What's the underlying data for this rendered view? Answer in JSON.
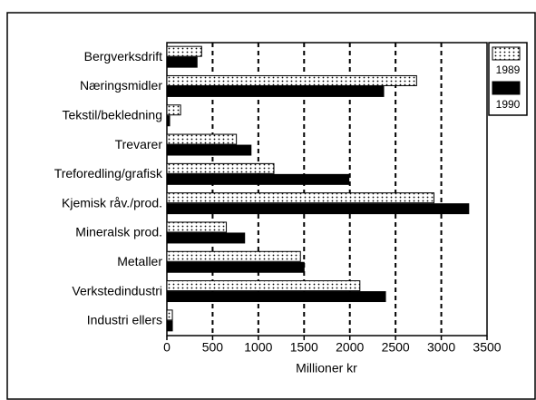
{
  "chart_data": {
    "type": "barh",
    "x_label": "Millioner kr",
    "categories": [
      "Bergverksdrift",
      "Næringsmidler",
      "Tekstil/bekledning",
      "Trevarer",
      "Treforedling/grafisk",
      "Kjemisk råv./prod.",
      "Mineralsk prod.",
      "Metaller",
      "Verkstedindustri",
      "Industri ellers"
    ],
    "series": [
      {
        "name": "1989",
        "color": "#ffffff",
        "values": [
          380,
          2730,
          150,
          760,
          1170,
          2920,
          650,
          1460,
          2110,
          60
        ]
      },
      {
        "name": "1990",
        "color": "#000000",
        "values": [
          330,
          2370,
          30,
          920,
          1990,
          3300,
          850,
          1500,
          2390,
          60
        ]
      }
    ],
    "xlim": [
      0,
      3500
    ],
    "xticks": [
      0,
      500,
      1000,
      1500,
      2000,
      2500,
      3000,
      3500
    ],
    "grid": true,
    "legend": "right"
  }
}
